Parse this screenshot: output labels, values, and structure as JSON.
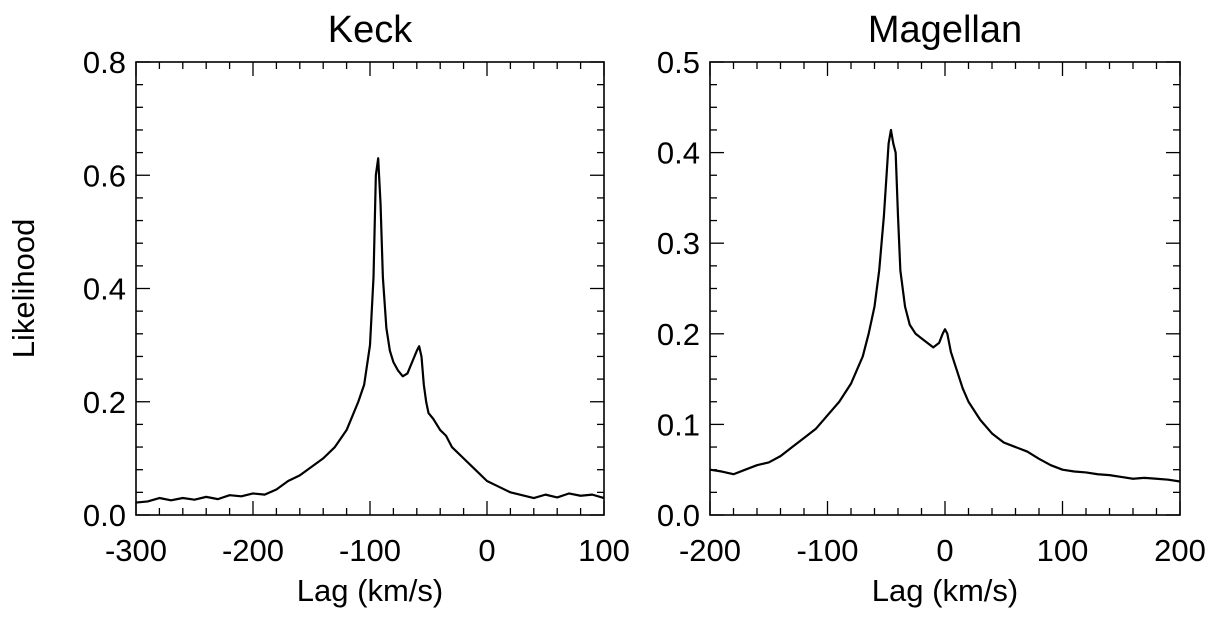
{
  "chart_data": [
    {
      "type": "line",
      "title": "Keck",
      "xlabel": "Lag (km/s)",
      "ylabel": "Likelihood",
      "xlim": [
        -300,
        100
      ],
      "ylim": [
        0.0,
        0.8
      ],
      "x_major_ticks": [
        -300,
        -200,
        -100,
        0,
        100
      ],
      "x_tick_labels": [
        "-300",
        "-200",
        "-100",
        "0",
        "100"
      ],
      "y_major_ticks": [
        0.0,
        0.2,
        0.4,
        0.6,
        0.8
      ],
      "y_tick_labels": [
        "0.0",
        "0.2",
        "0.4",
        "0.6",
        "0.8"
      ],
      "x_minor_step": 20,
      "y_minor_step": 0.04,
      "grid": false,
      "line_color": "#000000",
      "series": [
        {
          "x": [
            -300,
            -290,
            -280,
            -270,
            -260,
            -250,
            -240,
            -230,
            -220,
            -210,
            -200,
            -190,
            -180,
            -170,
            -160,
            -150,
            -140,
            -130,
            -120,
            -115,
            -110,
            -105,
            -100,
            -97,
            -95,
            -93,
            -91,
            -89,
            -86,
            -83,
            -80,
            -76,
            -72,
            -68,
            -64,
            -60,
            -58,
            -56,
            -54,
            -52,
            -50,
            -46,
            -40,
            -35,
            -30,
            -20,
            -10,
            0,
            10,
            20,
            30,
            40,
            50,
            60,
            70,
            80,
            90,
            100
          ],
          "y": [
            0.022,
            0.024,
            0.03,
            0.026,
            0.03,
            0.027,
            0.032,
            0.028,
            0.035,
            0.033,
            0.038,
            0.036,
            0.045,
            0.06,
            0.07,
            0.085,
            0.1,
            0.12,
            0.15,
            0.175,
            0.2,
            0.23,
            0.3,
            0.42,
            0.6,
            0.63,
            0.55,
            0.42,
            0.33,
            0.29,
            0.27,
            0.255,
            0.245,
            0.25,
            0.27,
            0.29,
            0.298,
            0.28,
            0.23,
            0.2,
            0.18,
            0.17,
            0.15,
            0.14,
            0.12,
            0.1,
            0.08,
            0.06,
            0.05,
            0.04,
            0.035,
            0.03,
            0.036,
            0.031,
            0.038,
            0.034,
            0.036,
            0.03
          ]
        }
      ]
    },
    {
      "type": "line",
      "title": "Magellan",
      "xlabel": "Lag (km/s)",
      "ylabel": "",
      "xlim": [
        -200,
        200
      ],
      "ylim": [
        0.0,
        0.5
      ],
      "x_major_ticks": [
        -200,
        -100,
        0,
        100,
        200
      ],
      "x_tick_labels": [
        "-200",
        "-100",
        "0",
        "100",
        "200"
      ],
      "y_major_ticks": [
        0.0,
        0.1,
        0.2,
        0.3,
        0.4,
        0.5
      ],
      "y_tick_labels": [
        "0.0",
        "0.1",
        "0.2",
        "0.3",
        "0.4",
        "0.5"
      ],
      "x_minor_step": 20,
      "y_minor_step": 0.025,
      "grid": false,
      "line_color": "#000000",
      "series": [
        {
          "x": [
            -200,
            -190,
            -180,
            -170,
            -160,
            -150,
            -140,
            -130,
            -120,
            -110,
            -100,
            -90,
            -80,
            -70,
            -65,
            -60,
            -56,
            -52,
            -50,
            -48,
            -46,
            -44,
            -42,
            -40,
            -38,
            -34,
            -30,
            -25,
            -20,
            -15,
            -10,
            -5,
            -2,
            0,
            2,
            5,
            10,
            15,
            20,
            30,
            40,
            50,
            60,
            70,
            80,
            90,
            100,
            110,
            120,
            130,
            140,
            150,
            160,
            170,
            180,
            190,
            200
          ],
          "y": [
            0.05,
            0.048,
            0.045,
            0.05,
            0.055,
            0.058,
            0.065,
            0.075,
            0.085,
            0.095,
            0.11,
            0.125,
            0.145,
            0.175,
            0.2,
            0.23,
            0.27,
            0.33,
            0.37,
            0.41,
            0.425,
            0.41,
            0.4,
            0.33,
            0.27,
            0.23,
            0.21,
            0.2,
            0.195,
            0.19,
            0.185,
            0.19,
            0.2,
            0.205,
            0.2,
            0.18,
            0.16,
            0.14,
            0.125,
            0.105,
            0.09,
            0.08,
            0.075,
            0.07,
            0.062,
            0.055,
            0.05,
            0.048,
            0.047,
            0.045,
            0.044,
            0.042,
            0.04,
            0.041,
            0.04,
            0.039,
            0.037
          ]
        }
      ]
    }
  ]
}
